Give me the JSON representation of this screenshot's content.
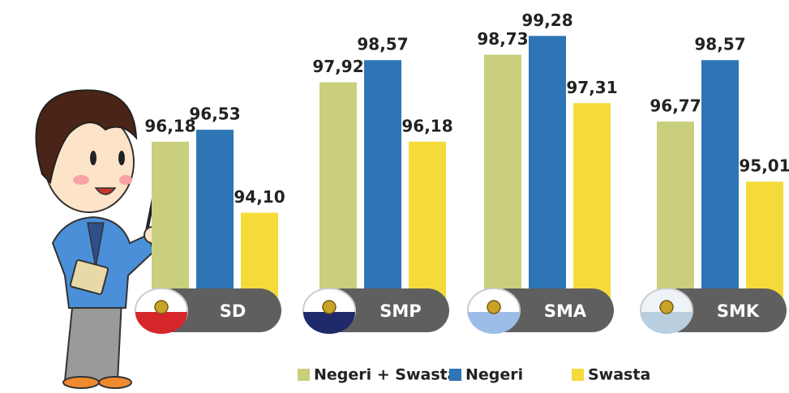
{
  "chart_data": {
    "type": "bar",
    "categories": [
      "SD",
      "SMP",
      "SMA",
      "SMK"
    ],
    "series": [
      {
        "name": "Negeri + Swasta",
        "color": "#c9cf7d",
        "values": [
          96.18,
          97.92,
          98.73,
          96.77
        ],
        "value_labels": [
          "96,18",
          "97,92",
          "98,73",
          "96,77"
        ]
      },
      {
        "name": "Negeri",
        "color": "#2e75b6",
        "values": [
          96.53,
          98.57,
          99.28,
          98.57
        ],
        "value_labels": [
          "96,53",
          "98,57",
          "99,28",
          "98,57"
        ]
      },
      {
        "name": "Swasta",
        "color": "#f5db3a",
        "values": [
          94.1,
          96.18,
          97.31,
          95.01
        ],
        "value_labels": [
          "94,10",
          "96,18",
          "97,31",
          "95,01"
        ]
      }
    ],
    "ylim": [
      91.5,
      100
    ]
  }
}
